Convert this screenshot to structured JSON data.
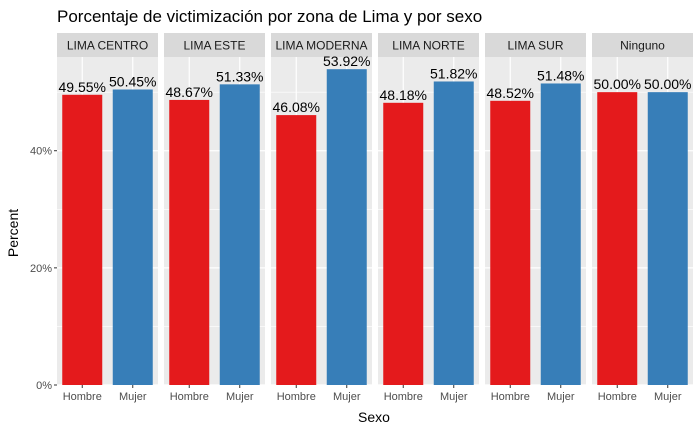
{
  "chart_data": {
    "type": "bar",
    "title": "Porcentaje de victimización por zona de Lima y por sexo",
    "xlabel": "Sexo",
    "ylabel": "Percent",
    "ylim": [
      0,
      0.56
    ],
    "y_ticks": [
      0,
      0.2,
      0.4
    ],
    "y_tick_labels": [
      "0%",
      "20%",
      "40%"
    ],
    "grid": true,
    "facets": [
      {
        "name": "LIMA CENTRO",
        "categories": [
          "Hombre",
          "Mujer"
        ],
        "values": [
          0.4955,
          0.5045
        ],
        "labels": [
          "49.55%",
          "50.45%"
        ]
      },
      {
        "name": "LIMA ESTE",
        "categories": [
          "Hombre",
          "Mujer"
        ],
        "values": [
          0.4867,
          0.5133
        ],
        "labels": [
          "48.67%",
          "51.33%"
        ]
      },
      {
        "name": "LIMA MODERNA",
        "categories": [
          "Hombre",
          "Mujer"
        ],
        "values": [
          0.4608,
          0.5392
        ],
        "labels": [
          "46.08%",
          "53.92%"
        ]
      },
      {
        "name": "LIMA NORTE",
        "categories": [
          "Hombre",
          "Mujer"
        ],
        "values": [
          0.4818,
          0.5182
        ],
        "labels": [
          "48.18%",
          "51.82%"
        ]
      },
      {
        "name": "LIMA SUR",
        "categories": [
          "Hombre",
          "Mujer"
        ],
        "values": [
          0.4852,
          0.5148
        ],
        "labels": [
          "48.52%",
          "51.48%"
        ]
      },
      {
        "name": "Ninguno",
        "categories": [
          "Hombre",
          "Mujer"
        ],
        "values": [
          0.5,
          0.5
        ],
        "labels": [
          "50.00%",
          "50.00%"
        ]
      }
    ],
    "colors": {
      "Hombre": "#E41A1C",
      "Mujer": "#377EB8"
    },
    "panel_background": "#EBEBEB",
    "strip_background": "#D9D9D9"
  }
}
